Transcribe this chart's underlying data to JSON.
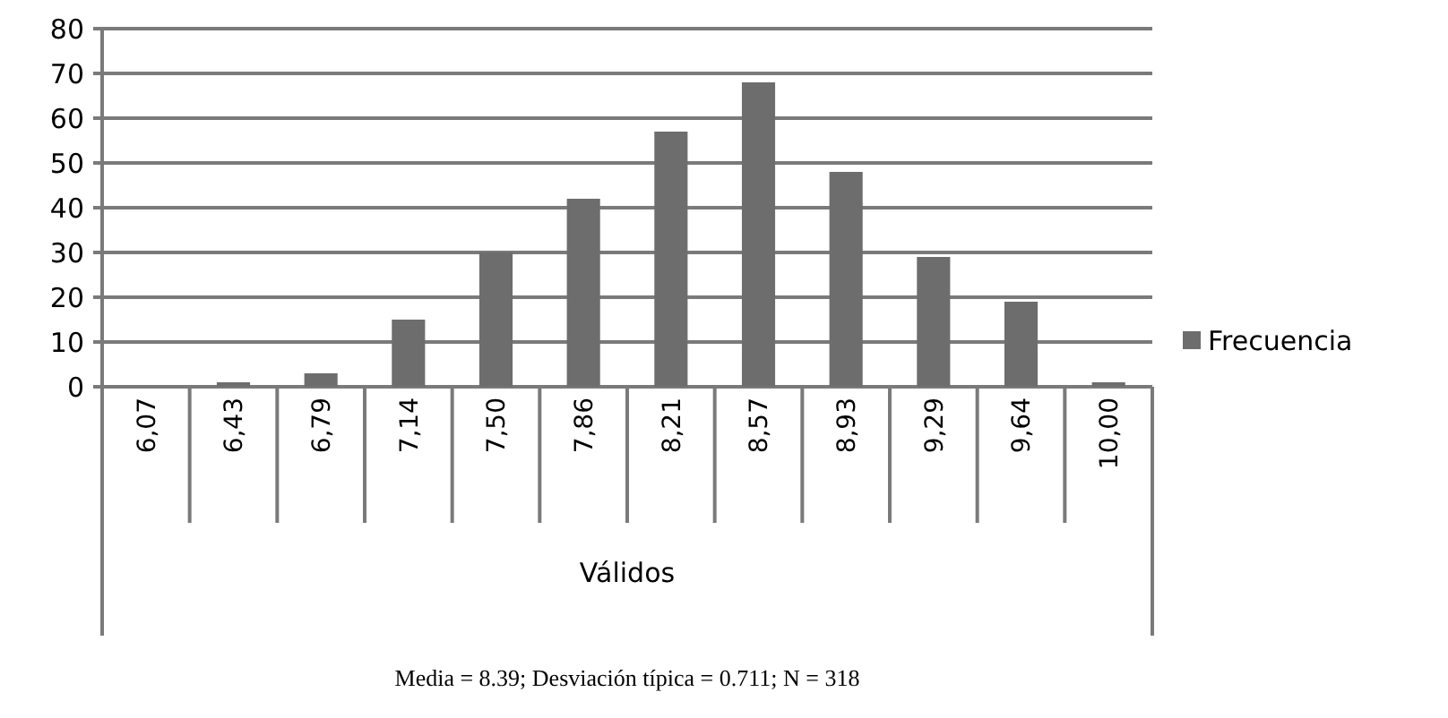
{
  "chart_data": {
    "type": "bar",
    "xlabel": "Válidos",
    "categories": [
      "6,07",
      "6,43",
      "6,79",
      "7,14",
      "7,50",
      "7,86",
      "8,21",
      "8,57",
      "8,93",
      "9,29",
      "9,64",
      "10,00"
    ],
    "series": [
      {
        "name": "Frecuencia",
        "color": "#6d6d6d",
        "values": [
          0,
          1,
          3,
          15,
          30,
          42,
          57,
          68,
          48,
          29,
          19,
          1
        ]
      }
    ],
    "ylim": [
      0,
      80
    ],
    "yticks": [
      0,
      10,
      20,
      30,
      40,
      50,
      60,
      70,
      80
    ],
    "grid": "y",
    "legend": "right",
    "annotations": [
      "Media = 8.39; Desviación típica = 0.711; N = 318"
    ]
  }
}
